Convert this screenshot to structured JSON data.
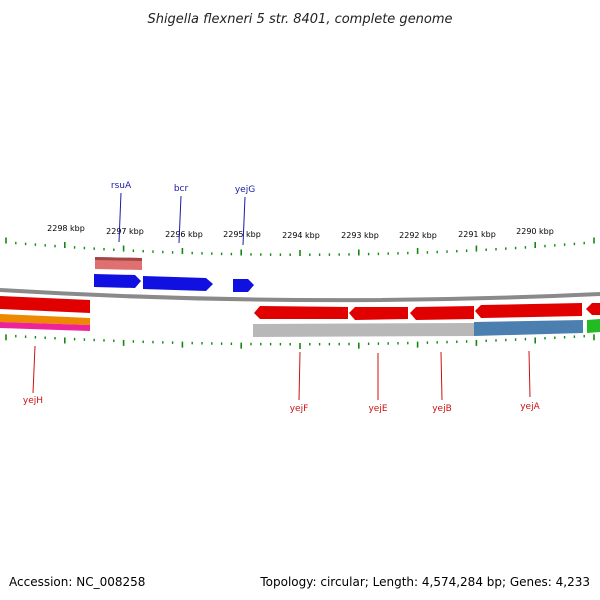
{
  "title": "Shigella flexneri 5 str. 8401, complete genome",
  "footer": {
    "accession": "Accession: NC_008258",
    "summary": "Topology: circular; Length: 4,574,284 bp; Genes: 4,233"
  },
  "kbp_labels": [
    "2298 kbp",
    "2297 kbp",
    "2296 kbp",
    "2295 kbp",
    "2294 kbp",
    "2293 kbp",
    "2292 kbp",
    "2291 kbp",
    "2290 kbp"
  ],
  "genes_upper": [
    "rsuA",
    "bcr",
    "yejG"
  ],
  "genes_lower": [
    "yejH",
    "yejF",
    "yejE",
    "yejB",
    "yejA"
  ],
  "colors": {
    "forward_strand": "#1010e0",
    "reverse_strand": "#e00000",
    "tick": "#118811",
    "backbone": "#8a8a8a",
    "label_upper": "#1a1aa6",
    "label_lower": "#cc1111",
    "pink_feature": "#e07070",
    "gray_feature": "#b8b8b8",
    "blue_feature": "#4a7fb0",
    "green_feature": "#22bb22",
    "orange_feature": "#ee8800",
    "magenta_feature": "#ee2299"
  }
}
